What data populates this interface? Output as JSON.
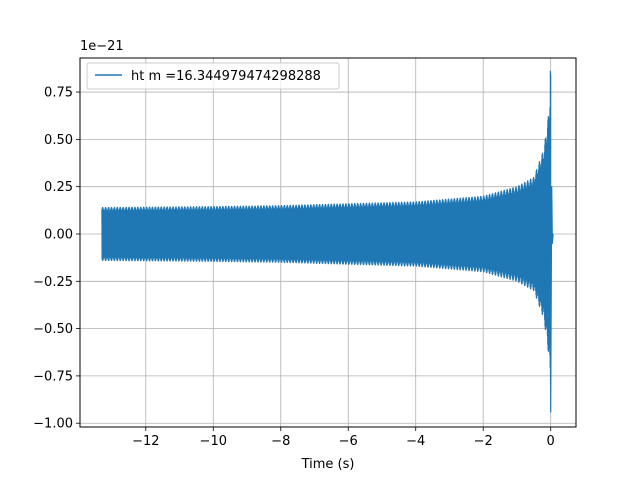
{
  "chart_data": {
    "type": "line",
    "title": "",
    "xlabel": "Time (s)",
    "ylabel": "",
    "y_multiplier_label": "1e−21",
    "xlim": [
      -13.95,
      0.75
    ],
    "ylim": [
      -1.02,
      0.93
    ],
    "x_ticks": [
      -12,
      -10,
      -8,
      -6,
      -4,
      -2,
      0
    ],
    "x_tick_labels": [
      "−12",
      "−10",
      "−8",
      "−6",
      "−4",
      "−2",
      "0"
    ],
    "y_ticks": [
      -1.0,
      -0.75,
      -0.5,
      -0.25,
      0.0,
      0.25,
      0.5,
      0.75
    ],
    "y_tick_labels": [
      "−1.00",
      "−0.75",
      "−0.50",
      "−0.25",
      "0.00",
      "0.25",
      "0.50",
      "0.75"
    ],
    "grid": true,
    "legend_position": "upper left",
    "series": [
      {
        "name": "ht m =16.344979474298288",
        "color": "#1f77b4",
        "start_time": -13.3,
        "merger_time": 0.0,
        "envelope_start": 0.14,
        "peak_max": 0.86,
        "peak_min": -0.94,
        "envelope_points": [
          {
            "t": -13.3,
            "amp": 0.14
          },
          {
            "t": -10,
            "amp": 0.145
          },
          {
            "t": -8,
            "amp": 0.15
          },
          {
            "t": -6,
            "amp": 0.16
          },
          {
            "t": -4,
            "amp": 0.17
          },
          {
            "t": -2,
            "amp": 0.2
          },
          {
            "t": -1,
            "amp": 0.25
          },
          {
            "t": -0.5,
            "amp": 0.3
          },
          {
            "t": -0.2,
            "amp": 0.45
          },
          {
            "t": -0.05,
            "amp": 0.65
          },
          {
            "t": 0.0,
            "amp": 0.86
          }
        ]
      }
    ]
  }
}
